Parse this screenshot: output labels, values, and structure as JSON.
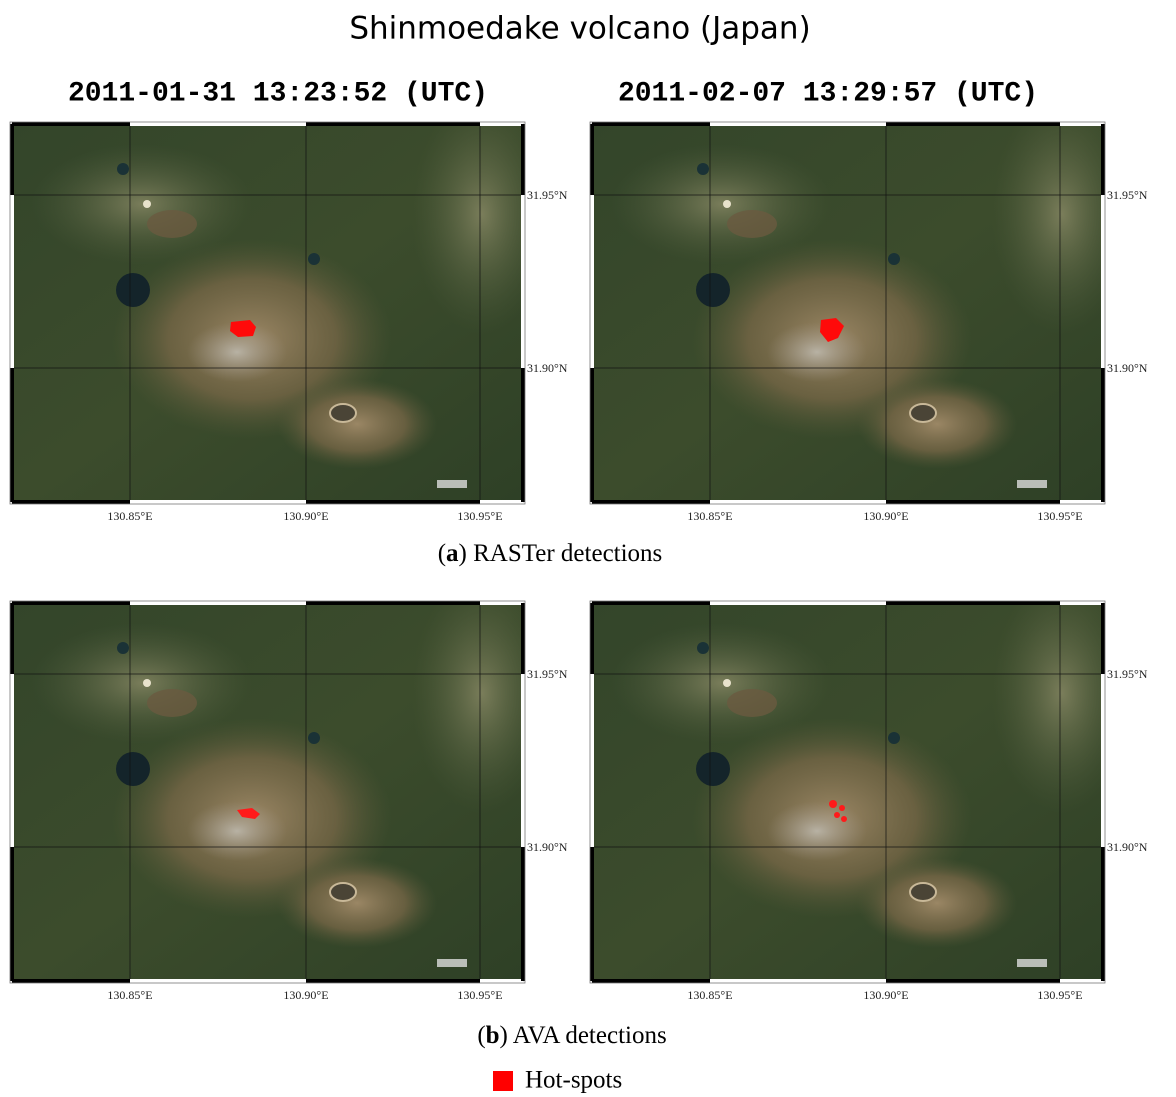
{
  "title": "Shinmoedake volcano (Japan)",
  "dates": [
    "2011-01-31 13:23:52 (UTC)",
    "2011-02-07 13:29:57 (UTC)"
  ],
  "rows": [
    {
      "caption": [
        "(",
        "a",
        ") RASTer detections"
      ]
    },
    {
      "caption": [
        "(",
        "b",
        ") AVA detections"
      ]
    }
  ],
  "lat_labels": [
    "31.95°N",
    "31.90°N"
  ],
  "lon_labels": [
    "130.85°E",
    "130.90°E",
    "130.95°E"
  ],
  "legend": "Hot-spots"
}
